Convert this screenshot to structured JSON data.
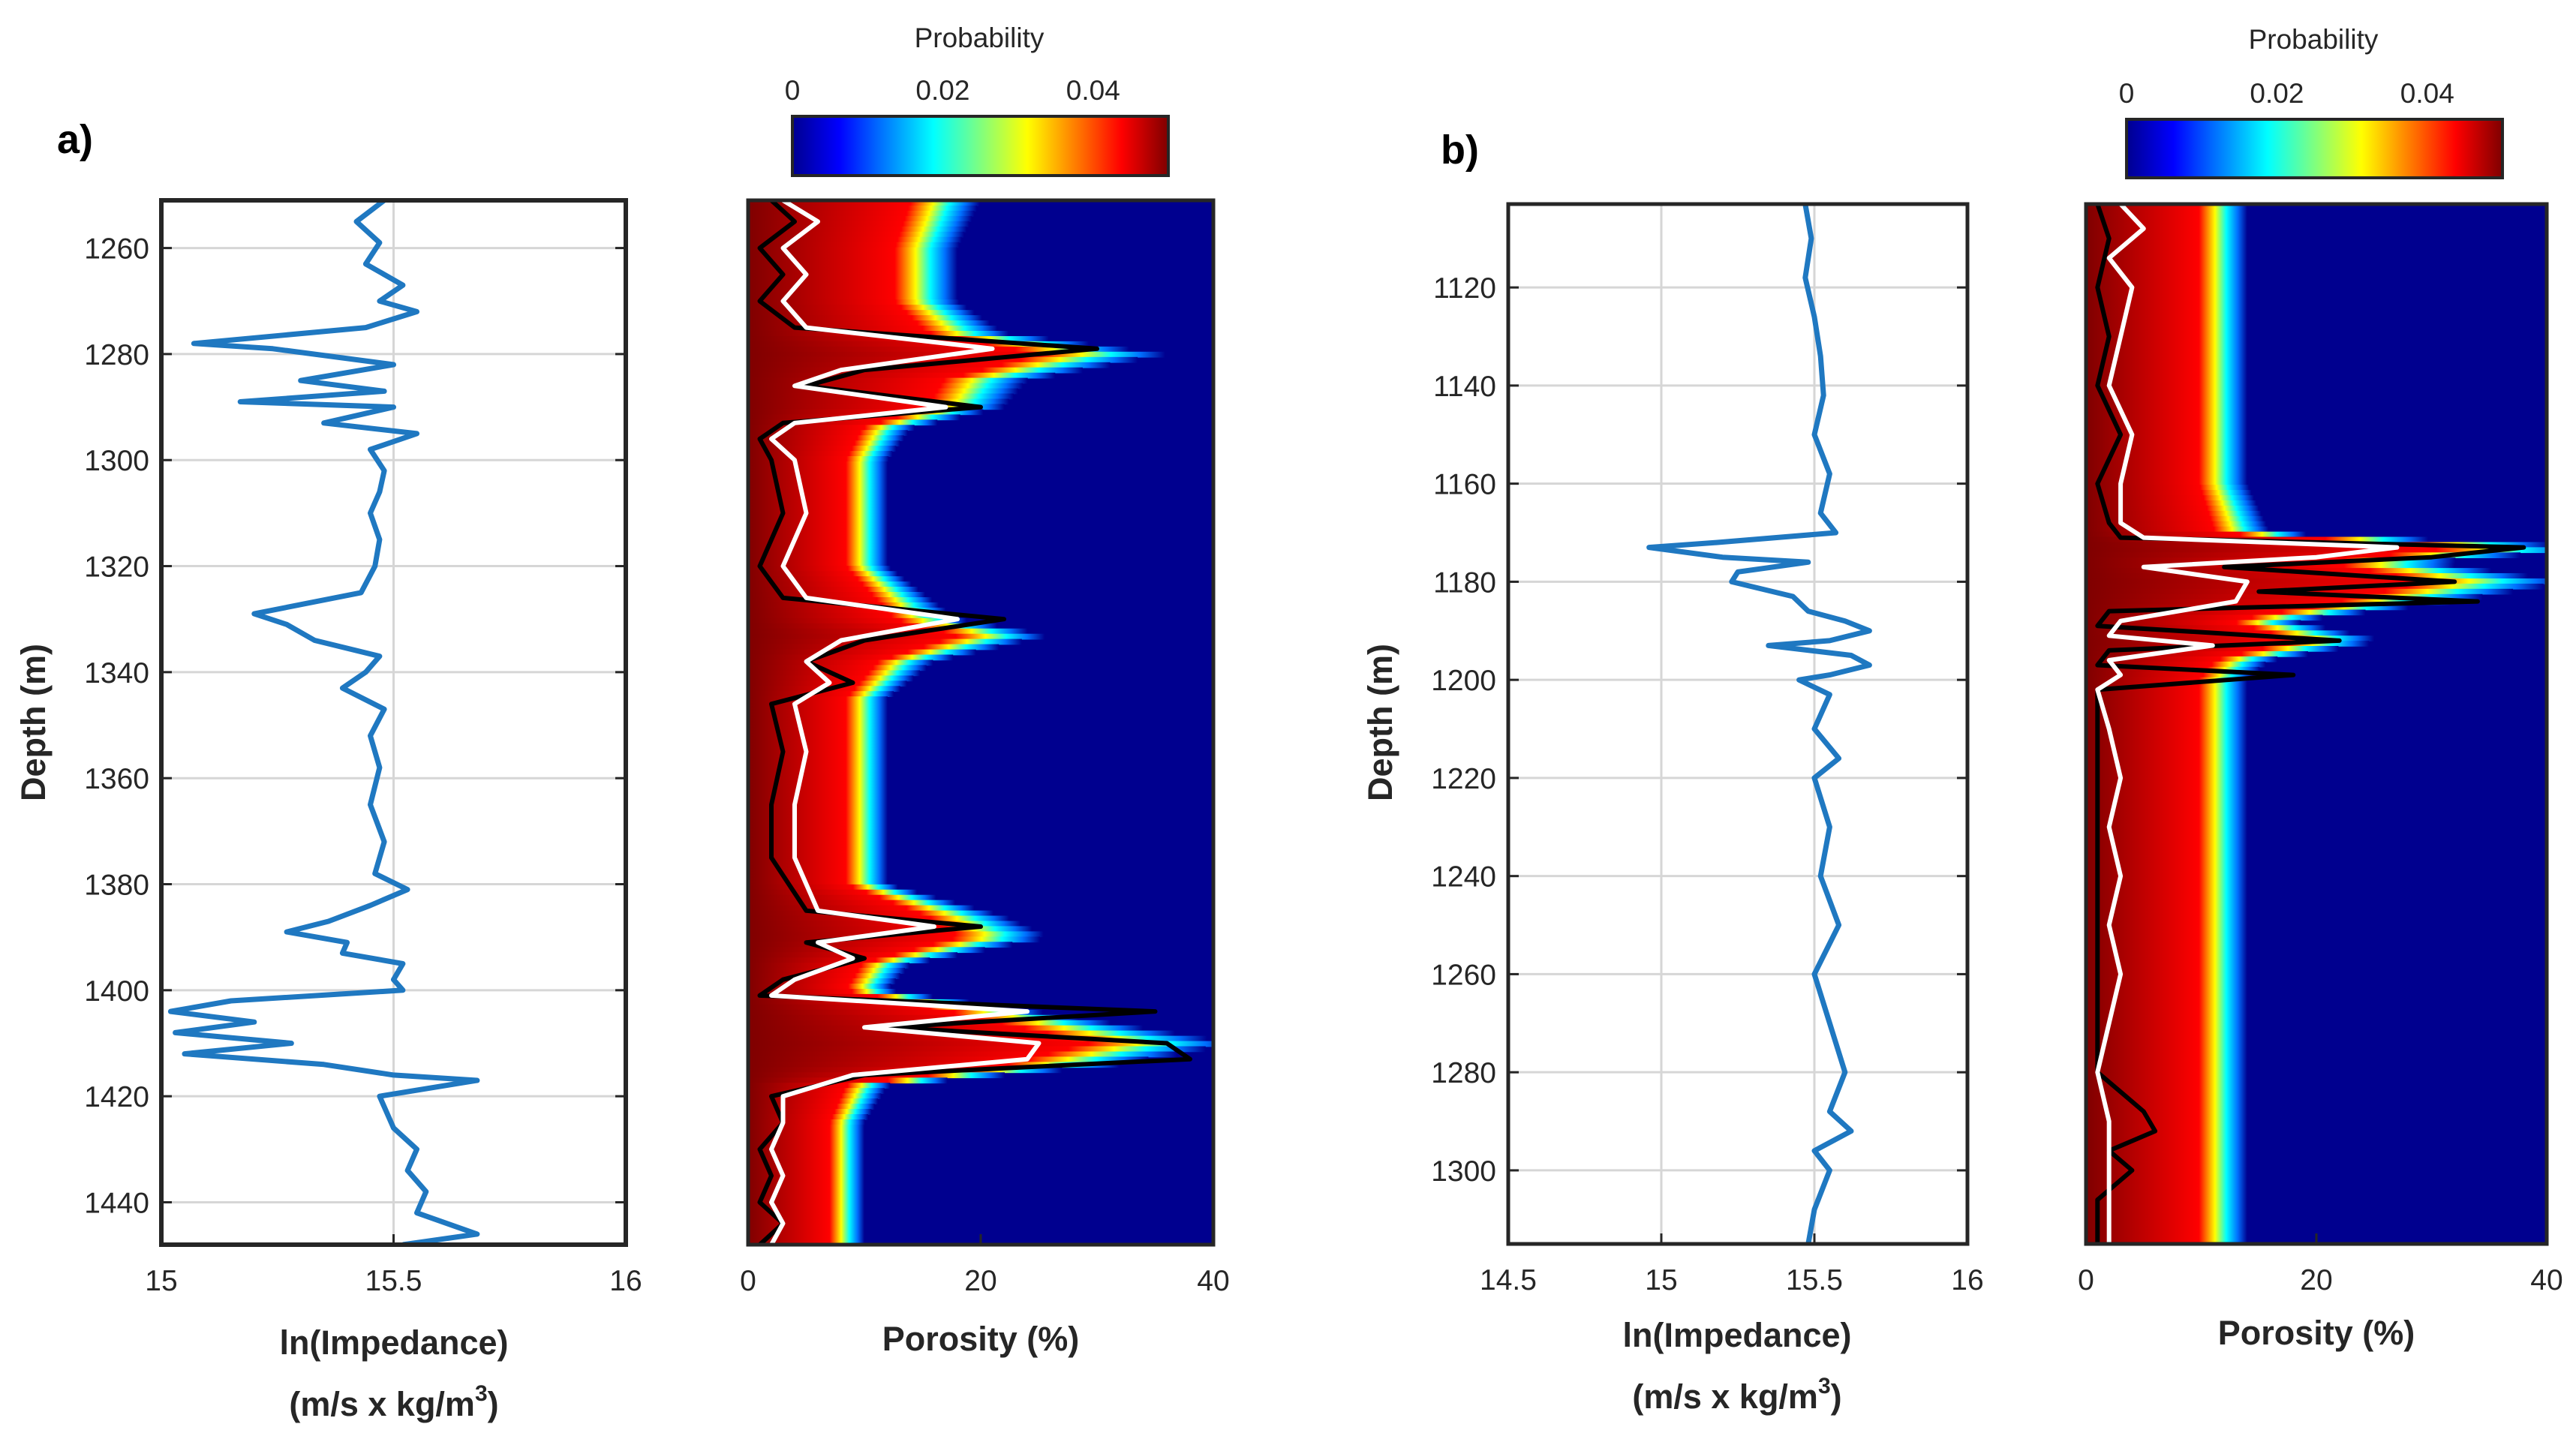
{
  "chart_data": [
    {
      "type": "line",
      "panel_label": "a)",
      "ylabel": "Depth (m)",
      "xlabel_line1": "ln(Impedance)",
      "xlabel_line2_pre": "(m/s x kg/m",
      "xlabel_line2_sup": "3",
      "xlabel_line2_post": ")",
      "xlim": [
        15,
        16
      ],
      "xticks": [
        15,
        15.5,
        16
      ],
      "xtick_labels": [
        "15",
        "15.5",
        "16"
      ],
      "ylim": [
        1251,
        1448
      ],
      "yticks": [
        1260,
        1280,
        1300,
        1320,
        1340,
        1360,
        1380,
        1400,
        1420,
        1440
      ],
      "ytick_labels": [
        "1260",
        "1280",
        "1300",
        "1320",
        "1340",
        "1360",
        "1380",
        "1400",
        "1420",
        "1440"
      ],
      "series": [
        {
          "name": "ln(Impedance)",
          "color": "#1f78c1",
          "depth": [
            1251,
            1255,
            1259,
            1263,
            1267,
            1270,
            1272,
            1275,
            1278,
            1279,
            1282,
            1285,
            1287,
            1289,
            1290,
            1293,
            1295,
            1298,
            1302,
            1306,
            1310,
            1315,
            1320,
            1325,
            1329,
            1331,
            1334,
            1337,
            1340,
            1343,
            1347,
            1352,
            1358,
            1365,
            1372,
            1378,
            1381,
            1384,
            1387,
            1389,
            1391,
            1393,
            1395,
            1398,
            1400,
            1402,
            1404,
            1406,
            1408,
            1410,
            1412,
            1414,
            1416,
            1417,
            1420,
            1426,
            1430,
            1434,
            1438,
            1442,
            1446,
            1448
          ],
          "values": [
            15.48,
            15.42,
            15.47,
            15.44,
            15.52,
            15.47,
            15.55,
            15.44,
            15.07,
            15.24,
            15.5,
            15.3,
            15.48,
            15.17,
            15.5,
            15.35,
            15.55,
            15.45,
            15.48,
            15.47,
            15.45,
            15.47,
            15.46,
            15.43,
            15.2,
            15.27,
            15.33,
            15.47,
            15.44,
            15.39,
            15.48,
            15.45,
            15.47,
            15.45,
            15.48,
            15.46,
            15.53,
            15.45,
            15.36,
            15.27,
            15.4,
            15.39,
            15.52,
            15.5,
            15.52,
            15.15,
            15.02,
            15.2,
            15.03,
            15.28,
            15.05,
            15.35,
            15.5,
            15.68,
            15.47,
            15.5,
            15.55,
            15.53,
            15.57,
            15.55,
            15.68,
            15.52
          ]
        }
      ]
    },
    {
      "type": "heatmap",
      "panel_label": "",
      "xlabel": "Porosity (%)",
      "xlim": [
        0,
        40
      ],
      "xticks": [
        0,
        20,
        40
      ],
      "xtick_labels": [
        "0",
        "20",
        "40"
      ],
      "ylim": [
        1251,
        1448
      ],
      "colorbar": {
        "label": "Probability",
        "ticks": [
          0,
          0.02,
          0.04
        ],
        "tick_labels": [
          "0",
          "0.02",
          "0.04"
        ],
        "range": [
          0,
          0.05
        ],
        "colormap": "jet"
      },
      "background_color": "#00008f",
      "band_center_pct": {
        "depth": [
          1251,
          1260,
          1270,
          1276,
          1280,
          1285,
          1290,
          1294,
          1300,
          1320,
          1330,
          1333,
          1338,
          1345,
          1360,
          1380,
          1386,
          1390,
          1395,
          1400,
          1405,
          1410,
          1414,
          1418,
          1425,
          1440,
          1448
        ],
        "values": [
          10,
          9,
          9,
          11,
          18,
          12,
          11,
          7,
          6,
          6,
          9,
          13,
          8,
          6,
          6,
          6,
          11,
          13,
          7,
          6,
          14,
          21,
          16,
          6,
          5,
          5,
          5
        ]
      },
      "series": [
        {
          "name": "black curve",
          "color": "#000000",
          "depth": [
            1251,
            1255,
            1260,
            1265,
            1270,
            1275,
            1279,
            1283,
            1286,
            1290,
            1293,
            1296,
            1300,
            1310,
            1320,
            1326,
            1330,
            1334,
            1338,
            1342,
            1346,
            1355,
            1365,
            1375,
            1385,
            1388,
            1391,
            1394,
            1398,
            1401,
            1404,
            1407,
            1410,
            1413,
            1416,
            1420,
            1425,
            1430,
            1435,
            1440,
            1444,
            1448
          ],
          "values": [
            2,
            4,
            1,
            3,
            1,
            4,
            30,
            10,
            5,
            20,
            3,
            1,
            2,
            3,
            1,
            3,
            22,
            10,
            5,
            9,
            2,
            3,
            2,
            2,
            5,
            20,
            5,
            10,
            3,
            1,
            35,
            12,
            36,
            38,
            10,
            2,
            3,
            1,
            2,
            1,
            3,
            1
          ]
        },
        {
          "name": "white curve",
          "color": "#ffffff",
          "depth": [
            1251,
            1255,
            1260,
            1265,
            1270,
            1275,
            1279,
            1283,
            1286,
            1290,
            1293,
            1296,
            1300,
            1310,
            1320,
            1326,
            1330,
            1334,
            1338,
            1342,
            1346,
            1355,
            1365,
            1375,
            1385,
            1388,
            1391,
            1394,
            1398,
            1401,
            1404,
            1407,
            1410,
            1413,
            1416,
            1420,
            1425,
            1430,
            1435,
            1440,
            1444,
            1448
          ],
          "values": [
            3,
            6,
            3,
            5,
            3,
            5,
            21,
            8,
            4,
            17,
            4,
            2,
            4,
            5,
            3,
            5,
            18,
            8,
            5,
            7,
            4,
            5,
            4,
            4,
            6,
            16,
            6,
            9,
            4,
            2,
            24,
            10,
            25,
            24,
            9,
            3,
            3,
            2,
            3,
            2,
            3,
            2
          ]
        }
      ]
    },
    {
      "type": "line",
      "panel_label": "b)",
      "ylabel": "Depth (m)",
      "xlabel_line1": "ln(Impedance)",
      "xlabel_line2_pre": "(m/s x kg/m",
      "xlabel_line2_sup": "3",
      "xlabel_line2_post": ")",
      "xlim": [
        14.5,
        16
      ],
      "xticks": [
        14.5,
        15,
        15.5,
        16
      ],
      "xtick_labels": [
        "14.5",
        "15",
        "15.5",
        "16"
      ],
      "ylim": [
        1103,
        1315
      ],
      "yticks": [
        1120,
        1140,
        1160,
        1180,
        1200,
        1220,
        1240,
        1260,
        1280,
        1300
      ],
      "ytick_labels": [
        "1120",
        "1140",
        "1160",
        "1180",
        "1200",
        "1220",
        "1240",
        "1260",
        "1280",
        "1300"
      ],
      "series": [
        {
          "name": "ln(Impedance)",
          "color": "#1f78c1",
          "depth": [
            1103,
            1110,
            1118,
            1126,
            1134,
            1142,
            1150,
            1158,
            1166,
            1170,
            1172,
            1173,
            1175,
            1176,
            1178,
            1180,
            1183,
            1186,
            1188,
            1190,
            1192,
            1193,
            1195,
            1197,
            1199,
            1200,
            1203,
            1210,
            1216,
            1220,
            1230,
            1240,
            1250,
            1260,
            1270,
            1280,
            1288,
            1292,
            1296,
            1300,
            1308,
            1315
          ],
          "values": [
            15.47,
            15.49,
            15.47,
            15.5,
            15.52,
            15.53,
            15.5,
            15.55,
            15.52,
            15.57,
            15.18,
            14.96,
            15.2,
            15.48,
            15.25,
            15.23,
            15.43,
            15.48,
            15.6,
            15.68,
            15.55,
            15.35,
            15.62,
            15.68,
            15.55,
            15.45,
            15.55,
            15.5,
            15.58,
            15.5,
            15.55,
            15.52,
            15.58,
            15.5,
            15.55,
            15.6,
            15.55,
            15.62,
            15.5,
            15.55,
            15.5,
            15.48
          ]
        }
      ]
    },
    {
      "type": "heatmap",
      "panel_label": "",
      "xlabel": "Porosity (%)",
      "xlim": [
        0,
        40
      ],
      "xticks": [
        0,
        20,
        40
      ],
      "xtick_labels": [
        "0",
        "20",
        "40"
      ],
      "ylim": [
        1103,
        1315
      ],
      "colorbar": {
        "label": "Probability",
        "ticks": [
          0,
          0.02,
          0.04
        ],
        "tick_labels": [
          "0",
          "0.02",
          "0.04"
        ],
        "range": [
          0,
          0.05
        ],
        "colormap": "jet"
      },
      "background_color": "#00008f",
      "band_center_pct": {
        "depth": [
          1103,
          1120,
          1140,
          1160,
          1170,
          1173,
          1176,
          1180,
          1184,
          1188,
          1192,
          1196,
          1200,
          1220,
          1240,
          1260,
          1280,
          1300,
          1315
        ],
        "values": [
          7,
          7,
          7,
          7,
          8,
          23,
          15,
          21,
          16,
          9,
          13,
          8,
          7,
          7,
          7,
          7,
          7,
          7,
          7
        ]
      },
      "series": [
        {
          "name": "black curve",
          "color": "#000000",
          "depth": [
            1103,
            1110,
            1120,
            1130,
            1140,
            1150,
            1160,
            1168,
            1171,
            1173,
            1175,
            1177,
            1180,
            1182,
            1184,
            1186,
            1189,
            1192,
            1194,
            1197,
            1199,
            1202,
            1210,
            1230,
            1250,
            1270,
            1280,
            1284,
            1288,
            1292,
            1296,
            1300,
            1306,
            1315
          ],
          "values": [
            1,
            2,
            1,
            2,
            1,
            3,
            1,
            2,
            3,
            38,
            30,
            12,
            32,
            15,
            34,
            2,
            1,
            22,
            2,
            1,
            18,
            1,
            1,
            1,
            1,
            1,
            1,
            3,
            5,
            6,
            2,
            4,
            1,
            1
          ]
        },
        {
          "name": "white curve",
          "color": "#ffffff",
          "depth": [
            1103,
            1108,
            1114,
            1120,
            1130,
            1140,
            1150,
            1160,
            1168,
            1171,
            1173,
            1175,
            1177,
            1180,
            1184,
            1188,
            1191,
            1193,
            1196,
            1199,
            1202,
            1210,
            1220,
            1230,
            1240,
            1250,
            1260,
            1270,
            1280,
            1290,
            1300,
            1308,
            1315
          ],
          "values": [
            3,
            5,
            2,
            4,
            3,
            2,
            4,
            3,
            3,
            5,
            27,
            20,
            5,
            14,
            13,
            3,
            2,
            11,
            2,
            3,
            1,
            2,
            3,
            2,
            3,
            2,
            3,
            2,
            1,
            2,
            2,
            2,
            2
          ]
        }
      ]
    }
  ]
}
